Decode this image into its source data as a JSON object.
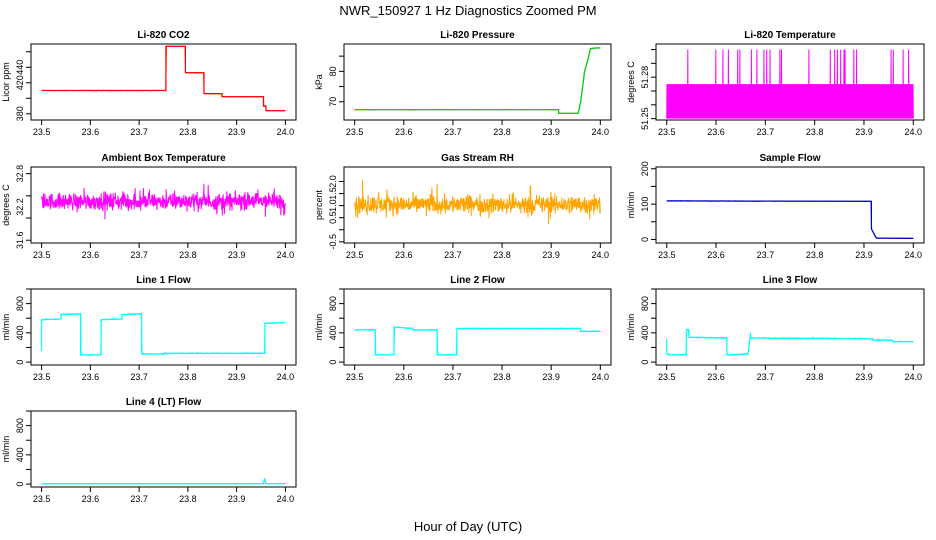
{
  "figure": {
    "title": "NWR_150927  1 Hz Diagnostics Zoomed PM",
    "xlabel": "Hour of Day (UTC)"
  },
  "chart_data": [
    {
      "id": "co2",
      "type": "line",
      "title": "Li-820 CO2",
      "ylabel": "Licor ppm",
      "xlim": [
        23.5,
        24.0
      ],
      "ylim": [
        372,
        470
      ],
      "yticks": [
        380,
        400,
        420,
        440,
        460
      ],
      "ytick_labels": [
        "380",
        "",
        "420",
        "440",
        ""
      ],
      "xticks": [
        23.5,
        23.6,
        23.7,
        23.8,
        23.9,
        24.0
      ],
      "color": "#ff0000",
      "noise": 0.5,
      "series": [
        {
          "x": [
            23.5,
            23.755,
            23.755,
            23.795,
            23.795,
            23.833,
            23.833,
            23.87,
            23.87,
            23.955,
            23.955,
            23.96,
            23.96,
            24.0
          ],
          "y": [
            410,
            410,
            467,
            467,
            433,
            433,
            406,
            406,
            402,
            402,
            390,
            390,
            384,
            384
          ]
        }
      ]
    },
    {
      "id": "pressure",
      "type": "line",
      "title": "Li-820 Pressure",
      "ylabel": "kPa",
      "xlim": [
        23.5,
        24.0
      ],
      "ylim": [
        64,
        89
      ],
      "yticks": [
        70,
        75,
        80,
        85
      ],
      "ytick_labels": [
        "70",
        "",
        "80",
        ""
      ],
      "xticks": [
        23.5,
        23.6,
        23.7,
        23.8,
        23.9,
        24.0
      ],
      "color": "#00cc00",
      "noise": 0.1,
      "series": [
        {
          "x": [
            23.5,
            23.915,
            23.915,
            23.955,
            23.96,
            23.968,
            23.975,
            23.98,
            23.99,
            24.0
          ],
          "y": [
            67.4,
            67.4,
            66.2,
            66.2,
            70,
            80,
            84,
            87.5,
            87.7,
            87.7
          ]
        }
      ]
    },
    {
      "id": "licor_temp",
      "type": "line",
      "title": "Li-820 Temperature",
      "ylabel": "degrees C",
      "xlim": [
        23.5,
        24.0
      ],
      "ylim": [
        51.249,
        51.304
      ],
      "yticks": [
        51.25,
        51.26,
        51.27,
        51.28,
        51.29,
        51.3
      ],
      "ytick_labels": [
        "51.25",
        "",
        "",
        "51.28",
        "",
        ""
      ],
      "xticks": [
        23.5,
        23.6,
        23.7,
        23.8,
        23.9,
        24.0
      ],
      "color": "#ff00ff",
      "levels": [
        51.25,
        51.275,
        51.3
      ],
      "series": []
    },
    {
      "id": "box_temp",
      "type": "line",
      "title": "Ambient Box Temperature",
      "ylabel": "degrees C",
      "xlim": [
        23.5,
        24.0
      ],
      "ylim": [
        31.55,
        32.92
      ],
      "yticks": [
        31.6,
        32.0,
        32.4,
        32.8
      ],
      "ytick_labels": [
        "31.6",
        "32.2",
        "32.8"
      ],
      "ytick_values": [
        31.6,
        32.2,
        32.8
      ],
      "xticks": [
        23.5,
        23.6,
        23.7,
        23.8,
        23.9,
        24.0
      ],
      "color": "#ff00ff",
      "center": 32.3,
      "noise": 0.22,
      "series": []
    },
    {
      "id": "rh",
      "type": "line",
      "title": "Gas Stream RH",
      "ylabel": "percent",
      "xlim": [
        23.5,
        24.0
      ],
      "ylim": [
        -0.55,
        2.6
      ],
      "yticks": [
        -0.5,
        0.0,
        0.5,
        1.0,
        1.5,
        2.0
      ],
      "ytick_labels": [
        "-0.5",
        "",
        "0.5",
        "1.0",
        "1.5",
        "2.0"
      ],
      "xticks": [
        23.5,
        23.6,
        23.7,
        23.8,
        23.9,
        24.0
      ],
      "color": "#ffa500",
      "center": 1.05,
      "noise": 0.55,
      "series": []
    },
    {
      "id": "sample_flow",
      "type": "line",
      "title": "Sample Flow",
      "ylabel": "ml/min",
      "xlim": [
        23.5,
        24.0
      ],
      "ylim": [
        -10,
        205
      ],
      "yticks": [
        0,
        50,
        100,
        150,
        200
      ],
      "ytick_labels": [
        "0",
        "",
        "100",
        "",
        "200"
      ],
      "xticks": [
        23.5,
        23.6,
        23.7,
        23.8,
        23.9,
        24.0
      ],
      "color": "#0000cc",
      "noise": 1,
      "series": [
        {
          "x": [
            23.5,
            23.915,
            23.915,
            23.925,
            24.0
          ],
          "y": [
            109,
            108,
            30,
            4,
            3
          ]
        }
      ]
    },
    {
      "id": "line1",
      "type": "line",
      "title": "Line 1 Flow",
      "ylabel": "ml/min",
      "xlim": [
        23.5,
        24.0
      ],
      "ylim": [
        -40,
        1000
      ],
      "yticks": [
        0,
        200,
        400,
        600,
        800,
        1000
      ],
      "ytick_labels": [
        "0",
        "",
        "400",
        "",
        "800",
        ""
      ],
      "xticks": [
        23.5,
        23.6,
        23.7,
        23.8,
        23.9,
        24.0
      ],
      "color": "#00ffff",
      "noise": 12,
      "series": [
        {
          "x": [
            23.5,
            23.5,
            23.54,
            23.54,
            23.58,
            23.58,
            23.622,
            23.622,
            23.665,
            23.665,
            23.705,
            23.705,
            23.75,
            23.75,
            23.958,
            23.958,
            24.0
          ],
          "y": [
            150,
            580,
            590,
            650,
            660,
            100,
            100,
            580,
            590,
            650,
            660,
            110,
            110,
            120,
            120,
            530,
            540
          ]
        }
      ]
    },
    {
      "id": "line2",
      "type": "line",
      "title": "Line 2 Flow",
      "ylabel": "ml/min",
      "xlim": [
        23.5,
        24.0
      ],
      "ylim": [
        -40,
        1000
      ],
      "yticks": [
        0,
        200,
        400,
        600,
        800,
        1000
      ],
      "ytick_labels": [
        "0",
        "",
        "400",
        "",
        "800",
        ""
      ],
      "xticks": [
        23.5,
        23.6,
        23.7,
        23.8,
        23.9,
        24.0
      ],
      "color": "#00ffff",
      "noise": 10,
      "series": [
        {
          "x": [
            23.5,
            23.542,
            23.542,
            23.58,
            23.58,
            23.618,
            23.618,
            23.668,
            23.668,
            23.708,
            23.708,
            23.96,
            23.96,
            24.0
          ],
          "y": [
            440,
            440,
            100,
            100,
            480,
            460,
            440,
            440,
            100,
            100,
            460,
            460,
            420,
            420
          ]
        }
      ]
    },
    {
      "id": "line3",
      "type": "line",
      "title": "Line 3 Flow",
      "ylabel": "ml/min",
      "xlim": [
        23.5,
        24.0
      ],
      "ylim": [
        -40,
        1000
      ],
      "yticks": [
        0,
        200,
        400,
        600,
        800,
        1000
      ],
      "ytick_labels": [
        "0",
        "",
        "400",
        "",
        "800",
        ""
      ],
      "xticks": [
        23.5,
        23.6,
        23.7,
        23.8,
        23.9,
        24.0
      ],
      "color": "#00ffff",
      "noise": 14,
      "series": [
        {
          "x": [
            23.5,
            23.5,
            23.503,
            23.503,
            23.54,
            23.54,
            23.545,
            23.545,
            23.622,
            23.622,
            23.665,
            23.665,
            23.67,
            23.67,
            23.918,
            23.918,
            23.958,
            23.958,
            24.0
          ],
          "y": [
            320,
            120,
            100,
            100,
            100,
            440,
            440,
            340,
            330,
            100,
            110,
            110,
            400,
            330,
            320,
            300,
            300,
            280,
            280
          ]
        }
      ]
    },
    {
      "id": "line4",
      "type": "line",
      "title": "Line 4 (LT) Flow",
      "ylabel": "ml/min",
      "xlim": [
        23.5,
        24.0
      ],
      "ylim": [
        -40,
        1000
      ],
      "yticks": [
        0,
        200,
        400,
        600,
        800,
        1000
      ],
      "ytick_labels": [
        "0",
        "",
        "400",
        "",
        "800",
        ""
      ],
      "xticks": [
        23.5,
        23.6,
        23.7,
        23.8,
        23.9,
        24.0
      ],
      "color": "#00ffff",
      "noise": 1.5,
      "series": [
        {
          "x": [
            23.5,
            23.955,
            23.956,
            23.958,
            23.96,
            24.0
          ],
          "y": [
            5,
            5,
            40,
            70,
            5,
            5
          ]
        }
      ]
    }
  ]
}
